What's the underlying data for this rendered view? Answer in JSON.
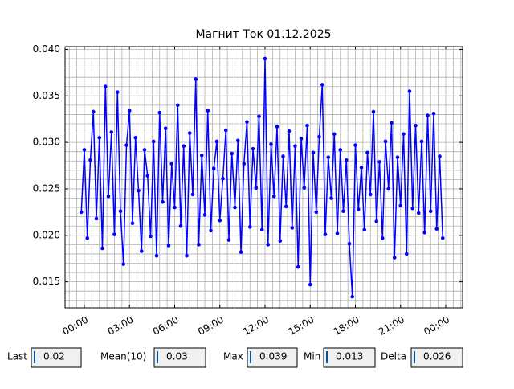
{
  "chart_data": {
    "type": "line",
    "title": "Магнит Ток 01.12.2025",
    "x": [
      -0.2,
      0.0,
      0.2,
      0.4,
      0.6,
      0.8,
      1.0,
      1.2,
      1.4,
      1.6,
      1.8,
      2.0,
      2.2,
      2.4,
      2.6,
      2.8,
      3.0,
      3.2,
      3.4,
      3.6,
      3.8,
      4.0,
      4.2,
      4.4,
      4.6,
      4.8,
      5.0,
      5.2,
      5.4,
      5.6,
      5.8,
      6.0,
      6.2,
      6.4,
      6.6,
      6.8,
      7.0,
      7.2,
      7.4,
      7.6,
      7.8,
      8.0,
      8.2,
      8.4,
      8.6,
      8.8,
      9.0,
      9.2,
      9.4,
      9.6,
      9.8,
      10.0,
      10.2,
      10.4,
      10.6,
      10.8,
      11.0,
      11.2,
      11.4,
      11.6,
      11.8,
      12.0,
      12.2,
      12.4,
      12.6,
      12.8,
      13.0,
      13.2,
      13.4,
      13.6,
      13.8,
      14.0,
      14.2,
      14.4,
      14.6,
      14.8,
      15.0,
      15.2,
      15.4,
      15.6,
      15.8,
      16.0,
      16.2,
      16.4,
      16.6,
      16.8,
      17.0,
      17.2,
      17.4,
      17.6,
      17.8,
      18.0,
      18.2,
      18.4,
      18.6,
      18.8,
      19.0,
      19.2,
      19.4,
      19.6,
      19.8,
      20.0,
      20.2,
      20.4,
      20.6,
      20.8,
      21.0,
      21.2,
      21.4,
      21.6,
      21.8,
      22.0,
      22.2,
      22.4,
      22.6,
      22.8,
      23.0,
      23.2,
      23.4,
      23.6,
      23.8
    ],
    "series": [
      {
        "color": "#0000ff",
        "values": [
          0.0225,
          0.0292,
          0.0197,
          0.0281,
          0.0333,
          0.0218,
          0.0305,
          0.0186,
          0.036,
          0.0242,
          0.0311,
          0.0201,
          0.0354,
          0.0226,
          0.0169,
          0.0297,
          0.0334,
          0.0213,
          0.0305,
          0.0248,
          0.0183,
          0.0292,
          0.0264,
          0.0199,
          0.0301,
          0.0178,
          0.0332,
          0.0236,
          0.0315,
          0.0189,
          0.0277,
          0.023,
          0.034,
          0.021,
          0.0296,
          0.0178,
          0.031,
          0.0244,
          0.0368,
          0.019,
          0.0286,
          0.0222,
          0.0334,
          0.0205,
          0.0272,
          0.0301,
          0.0216,
          0.0261,
          0.0313,
          0.0195,
          0.0288,
          0.023,
          0.0302,
          0.0182,
          0.0277,
          0.0322,
          0.0209,
          0.0293,
          0.0251,
          0.0328,
          0.0206,
          0.039,
          0.019,
          0.0298,
          0.0242,
          0.0317,
          0.0194,
          0.0285,
          0.0231,
          0.0312,
          0.0208,
          0.0296,
          0.0166,
          0.0304,
          0.0251,
          0.0318,
          0.0147,
          0.0289,
          0.0225,
          0.0306,
          0.0362,
          0.0201,
          0.0284,
          0.024,
          0.0309,
          0.0202,
          0.0292,
          0.0226,
          0.0281,
          0.0191,
          0.0134,
          0.0297,
          0.0228,
          0.0273,
          0.0206,
          0.0289,
          0.0244,
          0.0333,
          0.0215,
          0.0279,
          0.0197,
          0.0301,
          0.025,
          0.0321,
          0.0176,
          0.0284,
          0.0232,
          0.0309,
          0.018,
          0.0355,
          0.0229,
          0.0318,
          0.0224,
          0.0301,
          0.0203,
          0.0329,
          0.0226,
          0.0331,
          0.0207,
          0.0285,
          0.0197
        ]
      }
    ],
    "xlim": [
      -1.28,
      25.12
    ],
    "xticks": [
      {
        "value": 0,
        "label": "00:00"
      },
      {
        "value": 3,
        "label": "03:00"
      },
      {
        "value": 6,
        "label": "06:00"
      },
      {
        "value": 9,
        "label": "09:00"
      },
      {
        "value": 12,
        "label": "12:00"
      },
      {
        "value": 15,
        "label": "15:00"
      },
      {
        "value": 18,
        "label": "18:00"
      },
      {
        "value": 21,
        "label": "21:00"
      },
      {
        "value": 24,
        "label": "00:00"
      }
    ],
    "ylim": [
      0.0122,
      0.0403
    ],
    "yticks": [
      {
        "value": 0.015,
        "label": "0.015"
      },
      {
        "value": 0.02,
        "label": "0.020"
      },
      {
        "value": 0.025,
        "label": "0.025"
      },
      {
        "value": 0.03,
        "label": "0.030"
      },
      {
        "value": 0.035,
        "label": "0.035"
      },
      {
        "value": 0.04,
        "label": "0.040"
      }
    ],
    "grid": true,
    "minor_grid": true
  },
  "stats": [
    {
      "label": "Last",
      "value": "0.02"
    },
    {
      "label": "Mean(10)",
      "value": "0.03"
    },
    {
      "label": "Max",
      "value": "0.039"
    },
    {
      "label": "Min",
      "value": "0.013"
    },
    {
      "label": "Delta",
      "value": "0.026"
    }
  ]
}
